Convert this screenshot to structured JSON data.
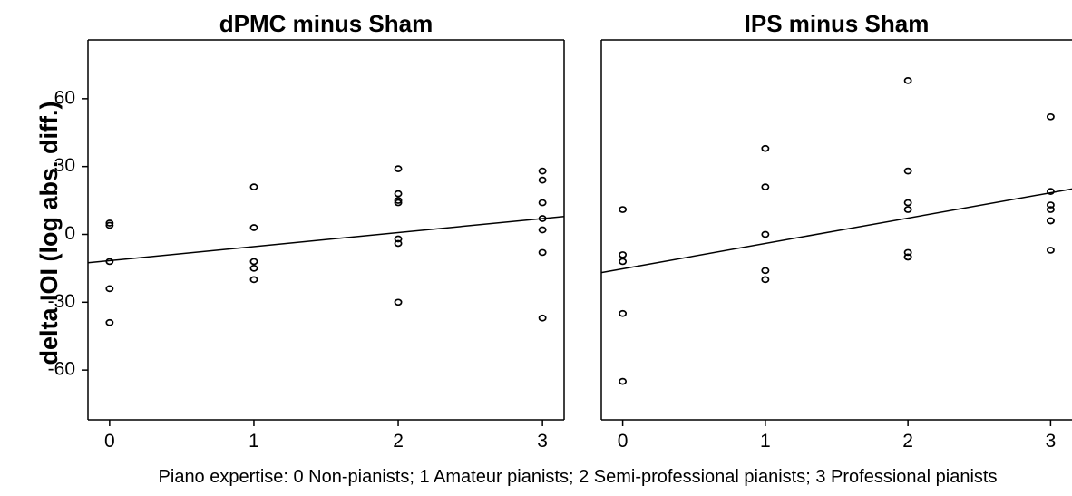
{
  "figure": {
    "ylabel": "delta IOI (log abs. diff.)",
    "xlabel": "Piano expertise: 0 Non-pianists; 1 Amateur pianists; 2 Semi-professional pianists; 3 Professional pianists"
  },
  "chart_data": [
    {
      "type": "scatter",
      "title": "dPMC minus Sham",
      "xticks": [
        "0",
        "1",
        "2",
        "3"
      ],
      "yticks": [
        "60",
        "30",
        "0",
        "-30",
        "-60"
      ],
      "xlim": [
        -0.15,
        3.15
      ],
      "ylim": [
        -82,
        86
      ],
      "points": [
        {
          "x": 0,
          "y": 5
        },
        {
          "x": 0,
          "y": 4
        },
        {
          "x": 0,
          "y": -12
        },
        {
          "x": 0,
          "y": -24
        },
        {
          "x": 0,
          "y": -39
        },
        {
          "x": 1,
          "y": 21
        },
        {
          "x": 1,
          "y": 3
        },
        {
          "x": 1,
          "y": -12
        },
        {
          "x": 1,
          "y": -15
        },
        {
          "x": 1,
          "y": -20
        },
        {
          "x": 2,
          "y": 29
        },
        {
          "x": 2,
          "y": 18
        },
        {
          "x": 2,
          "y": 15
        },
        {
          "x": 2,
          "y": 14
        },
        {
          "x": 2,
          "y": -2
        },
        {
          "x": 2,
          "y": -4
        },
        {
          "x": 2,
          "y": -30
        },
        {
          "x": 3,
          "y": 28
        },
        {
          "x": 3,
          "y": 24
        },
        {
          "x": 3,
          "y": 14
        },
        {
          "x": 3,
          "y": 7
        },
        {
          "x": 3,
          "y": 2
        },
        {
          "x": 3,
          "y": -8
        },
        {
          "x": 3,
          "y": -37
        }
      ],
      "fit_line": {
        "intercept": -11.6,
        "slope": 6.2
      }
    },
    {
      "type": "scatter",
      "title": "IPS minus Sham",
      "xticks": [
        "0",
        "1",
        "2",
        "3"
      ],
      "xlim": [
        -0.15,
        3.15
      ],
      "ylim": [
        -82,
        86
      ],
      "points": [
        {
          "x": 0,
          "y": 11
        },
        {
          "x": 0,
          "y": -9
        },
        {
          "x": 0,
          "y": -12
        },
        {
          "x": 0,
          "y": -35
        },
        {
          "x": 0,
          "y": -65
        },
        {
          "x": 1,
          "y": 38
        },
        {
          "x": 1,
          "y": 21
        },
        {
          "x": 1,
          "y": 0
        },
        {
          "x": 1,
          "y": -16
        },
        {
          "x": 1,
          "y": -20
        },
        {
          "x": 2,
          "y": 68
        },
        {
          "x": 2,
          "y": 28
        },
        {
          "x": 2,
          "y": 14
        },
        {
          "x": 2,
          "y": 11
        },
        {
          "x": 2,
          "y": -8
        },
        {
          "x": 2,
          "y": -10
        },
        {
          "x": 2,
          "y": -10
        },
        {
          "x": 3,
          "y": 52
        },
        {
          "x": 3,
          "y": 19
        },
        {
          "x": 3,
          "y": 13
        },
        {
          "x": 3,
          "y": 11
        },
        {
          "x": 3,
          "y": 6
        },
        {
          "x": 3,
          "y": 6
        },
        {
          "x": 3,
          "y": -7
        }
      ],
      "fit_line": {
        "intercept": -15.2,
        "slope": 11.2
      }
    }
  ]
}
